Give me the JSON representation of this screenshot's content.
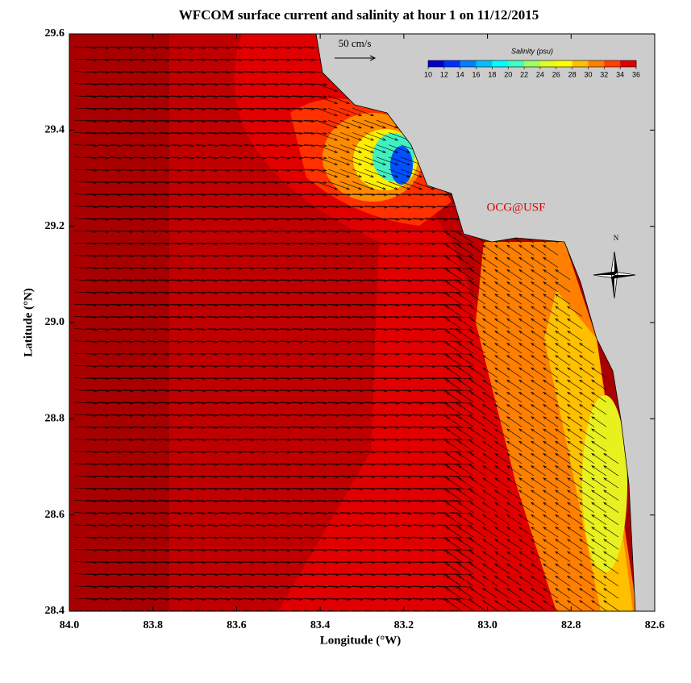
{
  "title": "WFCOM surface current and salinity at hour 1 on 11/12/2015",
  "x_axis": {
    "label": "Longitude (°W)",
    "lim": [
      84.0,
      82.6
    ],
    "ticks": [
      {
        "value": 84.0,
        "label": "84.0"
      },
      {
        "value": 83.8,
        "label": "83.8"
      },
      {
        "value": 83.6,
        "label": "83.6"
      },
      {
        "value": 83.4,
        "label": "83.4"
      },
      {
        "value": 83.2,
        "label": "83.2"
      },
      {
        "value": 83.0,
        "label": "83.0"
      },
      {
        "value": 82.8,
        "label": "82.8"
      },
      {
        "value": 82.6,
        "label": "82.6"
      }
    ]
  },
  "y_axis": {
    "label": "Latitude (°N)",
    "lim": [
      28.4,
      29.6
    ],
    "ticks": [
      {
        "value": 28.4,
        "label": "28.4"
      },
      {
        "value": 28.6,
        "label": "28.6"
      },
      {
        "value": 28.8,
        "label": "28.8"
      },
      {
        "value": 29.0,
        "label": "29.0"
      },
      {
        "value": 29.2,
        "label": "29.2"
      },
      {
        "value": 29.4,
        "label": "29.4"
      },
      {
        "value": 29.6,
        "label": "29.6"
      }
    ]
  },
  "scale_label": "50 cm/s",
  "watermark": "OCG@USF",
  "compass": "N",
  "colorbar": {
    "title": "Salinity (psu)",
    "lim": [
      10,
      36
    ],
    "ticks": [
      10,
      12,
      14,
      16,
      18,
      20,
      22,
      24,
      26,
      28,
      30,
      32,
      34,
      36
    ],
    "colors": [
      "#0000c8",
      "#0030ff",
      "#0080ff",
      "#00c0ff",
      "#00ffff",
      "#40ffc0",
      "#a0ff60",
      "#e0ff20",
      "#ffff00",
      "#ffc000",
      "#ff8000",
      "#ff4000",
      "#e00000"
    ]
  }
}
